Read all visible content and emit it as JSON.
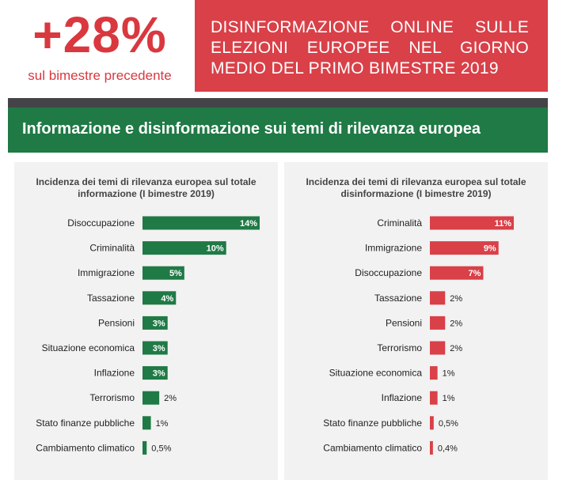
{
  "header": {
    "stat_value": "+28%",
    "stat_caption": "sul bimestre precedente",
    "title": "DISINFORMAZIONE ONLINE SULLE ELEZIONI EUROPEE NEL GIORNO MEDIO DEL PRIMO BIMESTRE 2019"
  },
  "section": {
    "title": "Informazione e disinformazione sui temi di rilevanza europea"
  },
  "colors": {
    "accent_red": "#d94048",
    "accent_green": "#1f7a45",
    "divider": "#444448",
    "panel_bg": "#f2f2f2"
  },
  "chart_data": [
    {
      "type": "bar",
      "orientation": "horizontal",
      "title": "Incidenza dei temi di rilevanza europea sul totale informazione (I bimestre 2019)",
      "color": "#1f7a45",
      "categories": [
        "Disoccupazione",
        "Criminalità",
        "Immigrazione",
        "Tassazione",
        "Pensioni",
        "Situazione economica",
        "Inflazione",
        "Terrorismo",
        "Stato finanze pubbliche",
        "Cambiamento climatico"
      ],
      "values": [
        14,
        10,
        5,
        4,
        3,
        3,
        3,
        2,
        1,
        0.5
      ],
      "labels": [
        "14%",
        "10%",
        "5%",
        "4%",
        "3%",
        "3%",
        "3%",
        "2%",
        "1%",
        "0,5%"
      ],
      "xlim": [
        0,
        14
      ]
    },
    {
      "type": "bar",
      "orientation": "horizontal",
      "title": "Incidenza dei temi di rilevanza europea sul totale disinformazione (I bimestre 2019)",
      "color": "#d94048",
      "categories": [
        "Criminalità",
        "Immigrazione",
        "Disoccupazione",
        "Tassazione",
        "Pensioni",
        "Terrorismo",
        "Situazione economica",
        "Inflazione",
        "Stato finanze pubbliche",
        "Cambiamento climatico"
      ],
      "values": [
        11,
        9,
        7,
        2,
        2,
        2,
        1,
        1,
        0.5,
        0.4
      ],
      "labels": [
        "11%",
        "9%",
        "7%",
        "2%",
        "2%",
        "2%",
        "1%",
        "1%",
        "0,5%",
        "0,4%"
      ],
      "xlim": [
        0,
        11
      ]
    }
  ]
}
